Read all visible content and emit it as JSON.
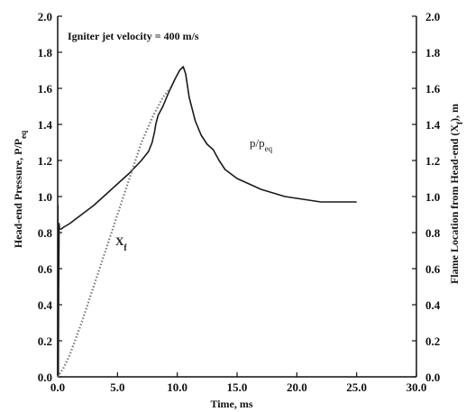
{
  "chart_data": {
    "type": "line",
    "title": "",
    "annotation": "Igniter jet velocity = 400 m/s",
    "xlabel": "Time, ms",
    "ylabel_left": {
      "text": "Head-end Pressure, P/P",
      "sub": "eq"
    },
    "ylabel_right": {
      "text": "Flame Location from Head-end (X",
      "sub": "f",
      "tail": "), m"
    },
    "xlim": [
      0,
      30
    ],
    "ylim_left": [
      0,
      2
    ],
    "ylim_right": [
      0,
      2
    ],
    "x_ticks": [
      "0.0",
      "5.0",
      "10.0",
      "15.0",
      "20.0",
      "25.0",
      "30.0"
    ],
    "y_ticks_left": [
      "0.0",
      "0.2",
      "0.4",
      "0.6",
      "0.8",
      "1.0",
      "1.2",
      "1.4",
      "1.6",
      "1.8",
      "2.0"
    ],
    "y_ticks_right": [
      "0.0",
      "0.2",
      "0.4",
      "0.6",
      "0.8",
      "1.0",
      "1.2",
      "1.4",
      "1.6",
      "1.8",
      "2.0"
    ],
    "grid": false,
    "series": [
      {
        "name": "p/p",
        "name_sub": "eq",
        "style": "solid",
        "color": "#1a1a1a",
        "x": [
          0.0,
          0.02,
          0.05,
          0.08,
          0.12,
          0.15,
          0.3,
          0.5,
          1.0,
          2.0,
          3.0,
          4.0,
          5.0,
          6.0,
          7.0,
          7.6,
          7.9,
          8.1,
          8.2,
          8.4,
          8.8,
          9.3,
          9.8,
          10.2,
          10.5,
          10.7,
          11.0,
          11.5,
          12.0,
          12.5,
          13.0,
          13.5,
          14.0,
          15.0,
          16.0,
          17.0,
          18.0,
          19.0,
          20.0,
          21.0,
          22.0,
          23.0,
          24.0,
          25.0
        ],
        "y": [
          0.0,
          0.95,
          0.0,
          0.5,
          0.85,
          0.82,
          0.82,
          0.83,
          0.85,
          0.9,
          0.95,
          1.01,
          1.07,
          1.13,
          1.2,
          1.25,
          1.3,
          1.36,
          1.4,
          1.45,
          1.5,
          1.58,
          1.65,
          1.7,
          1.72,
          1.68,
          1.55,
          1.42,
          1.34,
          1.29,
          1.26,
          1.2,
          1.15,
          1.1,
          1.07,
          1.04,
          1.02,
          1.0,
          0.99,
          0.98,
          0.97,
          0.97,
          0.97,
          0.97
        ]
      },
      {
        "name": "X",
        "name_sub": "f",
        "style": "dotted",
        "color": "#777777",
        "x": [
          0.0,
          0.5,
          1.0,
          2.0,
          3.0,
          4.0,
          5.0,
          6.0,
          7.0,
          8.0,
          8.8,
          9.4
        ],
        "y": [
          0.0,
          0.05,
          0.12,
          0.3,
          0.5,
          0.7,
          0.9,
          1.1,
          1.3,
          1.45,
          1.55,
          1.6
        ]
      }
    ]
  }
}
